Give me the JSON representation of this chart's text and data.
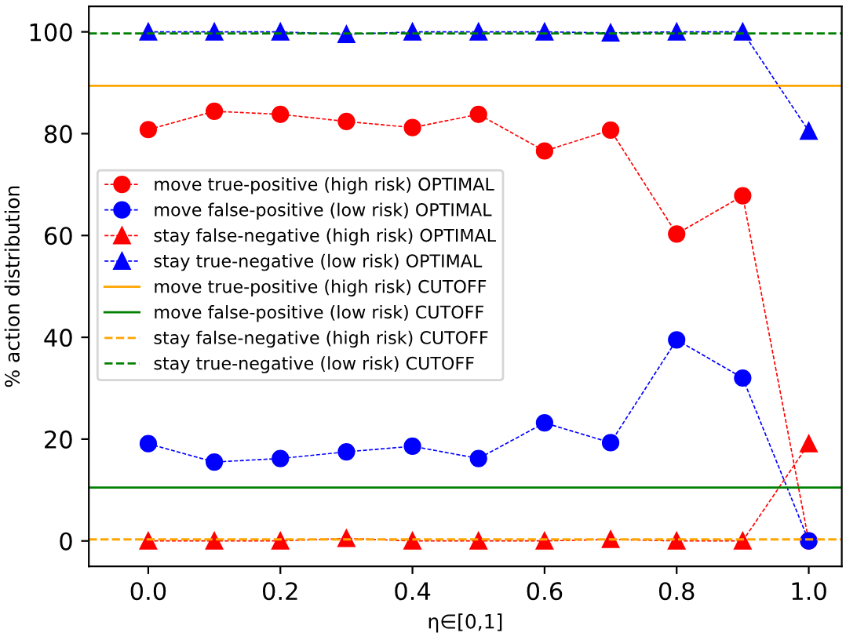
{
  "chart_data": {
    "type": "line",
    "xlabel": "η∈[0,1]",
    "ylabel": "% action distribution",
    "xlim": [
      -0.09,
      1.05
    ],
    "ylim": [
      -5,
      105
    ],
    "xticks": [
      {
        "value": 0,
        "label": "0.0"
      },
      {
        "value": 0.2,
        "label": "0.2"
      },
      {
        "value": 0.4,
        "label": "0.4"
      },
      {
        "value": 0.6,
        "label": "0.6"
      },
      {
        "value": 0.8,
        "label": "0.8"
      },
      {
        "value": 1,
        "label": "1.0"
      }
    ],
    "yticks": [
      0,
      20,
      40,
      60,
      80,
      100
    ],
    "x": [
      0.0,
      0.1,
      0.2,
      0.3,
      0.4,
      0.5,
      0.6,
      0.7,
      0.8,
      0.9,
      1.0
    ],
    "grid": false,
    "legend": "left",
    "series": [
      {
        "name": "move true-positive (high risk) OPTIMAL",
        "color": "#ff0000",
        "marker": "circle",
        "line_style": "dashed",
        "values": [
          80.8,
          84.4,
          83.8,
          82.4,
          81.2,
          83.8,
          76.6,
          80.7,
          60.3,
          67.8,
          0
        ]
      },
      {
        "name": "move false-positive (low risk) OPTIMAL",
        "color": "#0000ff",
        "marker": "circle",
        "line_style": "dashed",
        "values": [
          19.1,
          15.5,
          16.2,
          17.5,
          18.6,
          16.2,
          23.2,
          19.3,
          39.5,
          32.0,
          0
        ]
      },
      {
        "name": "stay false-negative (high risk) OPTIMAL",
        "color": "#ff0000",
        "marker": "triangle",
        "line_style": "dashed",
        "values": [
          0,
          0,
          0,
          0.5,
          0,
          0,
          0,
          0.3,
          0,
          0,
          19.1
        ]
      },
      {
        "name": "stay true-negative (low risk) OPTIMAL",
        "color": "#0000ff",
        "marker": "triangle",
        "line_style": "dashed",
        "values": [
          100,
          100,
          100,
          99.5,
          100,
          100,
          100,
          99.8,
          100,
          100,
          80.5
        ]
      }
    ],
    "ref_lines": [
      {
        "axis": "y",
        "value": 89.4,
        "label": "move true-positive (high risk) CUTOFF",
        "color": "#ffa500",
        "line_style": "solid"
      },
      {
        "axis": "y",
        "value": 10.5,
        "label": "move false-positive (low risk) CUTOFF",
        "color": "#008000",
        "line_style": "solid"
      },
      {
        "axis": "y",
        "value": 0.3,
        "label": "stay false-negative (high risk) CUTOFF",
        "color": "#ffa500",
        "line_style": "dashed"
      },
      {
        "axis": "y",
        "value": 99.7,
        "label": "stay true-negative (low risk) CUTOFF",
        "color": "#008000",
        "line_style": "dashed"
      }
    ]
  }
}
